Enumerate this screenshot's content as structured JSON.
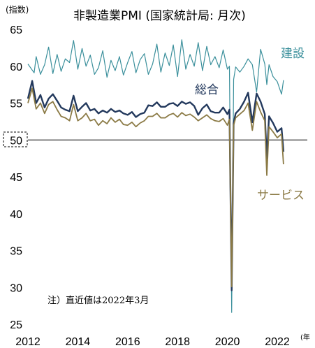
{
  "chart_data": {
    "type": "line",
    "title": "非製造業PMI (国家統計局: 月次)",
    "ylabel": "(指数)",
    "xlabel": "(年",
    "note": "注）直近値は2022年3月",
    "ylim": [
      25,
      65
    ],
    "xlim": [
      2012.0,
      2022.4
    ],
    "yticks": [
      25,
      30,
      35,
      40,
      45,
      50,
      55,
      60,
      65
    ],
    "xticks": [
      2012,
      2014,
      2016,
      2018,
      2020,
      2022
    ],
    "highlight_tick": 50,
    "reference_line": 50,
    "series": [
      {
        "name": "建設",
        "color": "#3a8f9b",
        "width": 1.2,
        "x": [
          2012.0,
          2012.25,
          2012.33,
          2012.5,
          2012.67,
          2012.83,
          2013.0,
          2013.17,
          2013.33,
          2013.5,
          2013.67,
          2013.83,
          2014.0,
          2014.17,
          2014.33,
          2014.5,
          2014.67,
          2014.83,
          2015.0,
          2015.17,
          2015.33,
          2015.5,
          2015.67,
          2015.83,
          2016.0,
          2016.17,
          2016.33,
          2016.5,
          2016.67,
          2016.83,
          2017.0,
          2017.17,
          2017.33,
          2017.5,
          2017.67,
          2017.83,
          2018.0,
          2018.17,
          2018.33,
          2018.5,
          2018.67,
          2018.83,
          2019.0,
          2019.17,
          2019.33,
          2019.5,
          2019.67,
          2019.83,
          2020.0,
          2020.08,
          2020.17,
          2020.25,
          2020.33,
          2020.5,
          2020.67,
          2020.83,
          2021.0,
          2021.17,
          2021.33,
          2021.5,
          2021.58,
          2021.67,
          2021.83,
          2022.0,
          2022.17,
          2022.25
        ],
        "values": [
          60.3,
          59.1,
          61.3,
          58.9,
          60.2,
          62.6,
          59.0,
          61.6,
          59.3,
          61.0,
          60.5,
          63.5,
          59.6,
          62.4,
          60.0,
          61.5,
          58.9,
          59.8,
          62.1,
          58.5,
          60.8,
          59.4,
          61.3,
          58.8,
          60.5,
          62.0,
          59.1,
          60.9,
          61.7,
          58.9,
          60.3,
          63.0,
          59.2,
          61.8,
          60.1,
          62.9,
          58.6,
          63.6,
          59.6,
          61.6,
          60.0,
          63.2,
          59.4,
          62.7,
          60.2,
          61.3,
          59.8,
          62.2,
          59.6,
          60.0,
          26.6,
          58.2,
          59.9,
          59.2,
          60.0,
          61.0,
          60.2,
          56.5,
          62.3,
          60.3,
          57.5,
          60.2,
          58.6,
          57.9,
          56.2,
          58.1
        ]
      },
      {
        "name": "総合",
        "color": "#23395d",
        "width": 2.4,
        "x": [
          2012.0,
          2012.17,
          2012.33,
          2012.5,
          2012.67,
          2012.83,
          2013.0,
          2013.17,
          2013.33,
          2013.5,
          2013.67,
          2013.83,
          2014.0,
          2014.17,
          2014.33,
          2014.5,
          2014.67,
          2014.83,
          2015.0,
          2015.17,
          2015.33,
          2015.5,
          2015.67,
          2015.83,
          2016.0,
          2016.17,
          2016.33,
          2016.5,
          2016.67,
          2016.83,
          2017.0,
          2017.17,
          2017.33,
          2017.5,
          2017.67,
          2017.83,
          2018.0,
          2018.17,
          2018.33,
          2018.5,
          2018.67,
          2018.83,
          2019.0,
          2019.17,
          2019.33,
          2019.5,
          2019.67,
          2019.83,
          2020.0,
          2020.08,
          2020.17,
          2020.25,
          2020.33,
          2020.5,
          2020.67,
          2020.83,
          2021.0,
          2021.17,
          2021.33,
          2021.5,
          2021.58,
          2021.67,
          2021.83,
          2022.0,
          2022.17,
          2022.25
        ],
        "values": [
          55.6,
          58.0,
          55.0,
          56.1,
          54.4,
          55.6,
          56.2,
          55.3,
          54.4,
          54.1,
          53.9,
          56.0,
          53.9,
          54.5,
          55.0,
          54.0,
          54.2,
          53.6,
          54.0,
          53.7,
          54.2,
          53.8,
          54.0,
          53.6,
          53.4,
          53.8,
          53.1,
          53.5,
          53.7,
          54.7,
          54.6,
          55.1,
          54.5,
          54.5,
          54.9,
          55.0,
          54.6,
          55.2,
          54.9,
          55.1,
          54.6,
          53.4,
          54.3,
          54.8,
          53.9,
          53.7,
          53.7,
          54.4,
          53.5,
          54.1,
          29.6,
          52.3,
          53.6,
          54.2,
          55.2,
          56.4,
          52.4,
          56.3,
          55.2,
          53.5,
          47.5,
          53.2,
          52.3,
          51.1,
          51.6,
          48.4
        ]
      },
      {
        "name": "サービス",
        "color": "#8b7a45",
        "width": 1.8,
        "x": [
          2012.0,
          2012.17,
          2012.33,
          2012.5,
          2012.67,
          2012.83,
          2013.0,
          2013.17,
          2013.33,
          2013.5,
          2013.67,
          2013.83,
          2014.0,
          2014.17,
          2014.33,
          2014.5,
          2014.67,
          2014.83,
          2015.0,
          2015.17,
          2015.33,
          2015.5,
          2015.67,
          2015.83,
          2016.0,
          2016.17,
          2016.33,
          2016.5,
          2016.67,
          2016.83,
          2017.0,
          2017.17,
          2017.33,
          2017.5,
          2017.67,
          2017.83,
          2018.0,
          2018.17,
          2018.33,
          2018.5,
          2018.67,
          2018.83,
          2019.0,
          2019.17,
          2019.33,
          2019.5,
          2019.67,
          2019.83,
          2020.0,
          2020.08,
          2020.17,
          2020.25,
          2020.33,
          2020.5,
          2020.67,
          2020.83,
          2021.0,
          2021.17,
          2021.33,
          2021.5,
          2021.58,
          2021.67,
          2021.83,
          2022.0,
          2022.17,
          2022.25
        ],
        "values": [
          55.0,
          57.0,
          54.2,
          55.0,
          53.6,
          54.8,
          55.2,
          54.1,
          53.2,
          53.0,
          52.6,
          54.8,
          52.6,
          53.0,
          53.6,
          52.6,
          52.8,
          52.0,
          52.6,
          52.2,
          53.0,
          52.4,
          52.8,
          52.1,
          52.0,
          52.4,
          51.8,
          52.3,
          52.6,
          53.2,
          53.2,
          53.6,
          53.0,
          53.0,
          53.4,
          53.6,
          53.1,
          53.7,
          53.3,
          53.5,
          53.1,
          52.6,
          53.0,
          53.4,
          52.9,
          52.6,
          52.5,
          52.9,
          52.0,
          52.8,
          30.1,
          52.0,
          53.0,
          53.5,
          54.0,
          55.0,
          51.3,
          55.2,
          53.8,
          52.6,
          45.2,
          51.8,
          51.1,
          50.3,
          50.8,
          46.7
        ]
      }
    ],
    "labels": {
      "construction": "建設",
      "composite": "総合",
      "services": "サービス"
    }
  }
}
